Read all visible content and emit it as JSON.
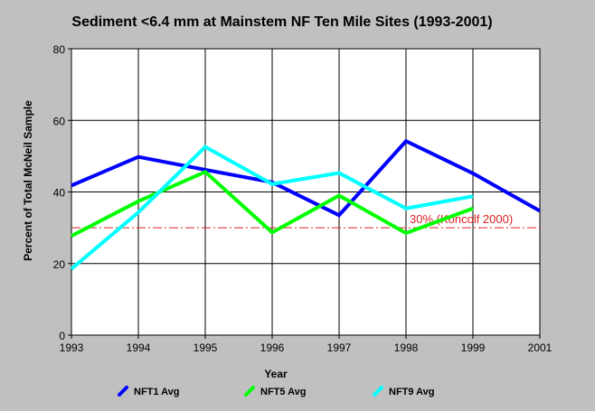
{
  "chart_data": {
    "type": "line",
    "title": "Sediment <6.4 mm at Mainstem NF Ten Mile Sites (1993-2001)",
    "xlabel": "Year",
    "ylabel": "Percent of Total McNeil Sample",
    "x": [
      1993,
      1994,
      1995,
      1996,
      1997,
      1998,
      1999,
      2001
    ],
    "x_tick_labels": [
      "1993",
      "1994",
      "1995",
      "1996",
      "1997",
      "1998",
      "1999",
      "2001"
    ],
    "ylim": [
      0,
      80
    ],
    "y_ticks": [
      0,
      20,
      40,
      60,
      80
    ],
    "grid": true,
    "legend_placement": "bottom",
    "series": [
      {
        "name": "NFT1 Avg",
        "color": "#0000ff",
        "points": [
          [
            1993,
            41.8
          ],
          [
            1994,
            49.8
          ],
          [
            1995,
            46.2
          ],
          [
            1996,
            42.7
          ],
          [
            1997,
            33.5
          ],
          [
            1998,
            54.2
          ],
          [
            1999,
            45.2
          ],
          [
            2001,
            34.7
          ]
        ]
      },
      {
        "name": "NFT5 Avg",
        "color": "#00ff00",
        "points": [
          [
            1993,
            27.7
          ],
          [
            1994,
            37.4
          ],
          [
            1995,
            45.6
          ],
          [
            1996,
            28.7
          ],
          [
            1997,
            39.0
          ],
          [
            1998,
            28.5
          ],
          [
            1999,
            35.4
          ]
        ]
      },
      {
        "name": "NFT9 Avg",
        "color": "#00ffff",
        "points": [
          [
            1993,
            18.5
          ],
          [
            1994,
            34.3
          ],
          [
            1995,
            52.6
          ],
          [
            1996,
            42.2
          ],
          [
            1997,
            45.3
          ],
          [
            1998,
            35.4
          ],
          [
            1999,
            38.8
          ]
        ]
      }
    ],
    "reference_line": {
      "value": 30,
      "color": "#dd2222",
      "label": "30% (Koncolf 2000)"
    }
  }
}
